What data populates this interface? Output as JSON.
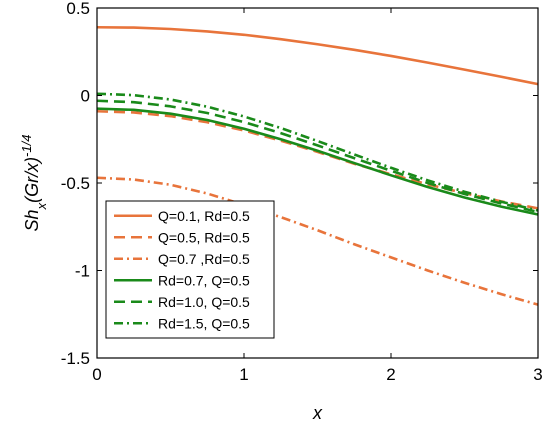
{
  "chart_data": {
    "type": "line",
    "xlabel": "x",
    "ylabel": {
      "base": "Sh",
      "sub": "x",
      "middle": "(Gr/x)",
      "sup": "-1/4"
    },
    "xlim": [
      0,
      3
    ],
    "ylim": [
      -1.5,
      0.5
    ],
    "x_ticks": [
      0,
      1,
      2,
      3
    ],
    "x_tick_labels": [
      "0",
      "1",
      "2",
      "3"
    ],
    "y_ticks": [
      0.5,
      0,
      -0.5,
      -1,
      -1.5
    ],
    "y_tick_labels": [
      "0.5",
      "0",
      "-0.5",
      "-1",
      "-1.5"
    ],
    "grid": false,
    "legend_position": "bottom-left",
    "x": [
      0,
      0.25,
      0.5,
      0.75,
      1,
      1.25,
      1.5,
      1.75,
      2,
      2.25,
      2.5,
      2.75,
      3
    ],
    "series": [
      {
        "name": "Q=0.1, Rd=0.5",
        "color": "#E8743B",
        "dash": "solid",
        "values": [
          0.39,
          0.388,
          0.38,
          0.366,
          0.347,
          0.322,
          0.293,
          0.261,
          0.226,
          0.188,
          0.148,
          0.107,
          0.065
        ]
      },
      {
        "name": "Q=0.5, Rd=0.5",
        "color": "#E8743B",
        "dash": "dashed",
        "values": [
          -0.09,
          -0.097,
          -0.118,
          -0.153,
          -0.2,
          -0.258,
          -0.322,
          -0.39,
          -0.45,
          -0.508,
          -0.558,
          -0.605,
          -0.645
        ]
      },
      {
        "name": "Q=0.7 ,Rd=0.5",
        "color": "#E8743B",
        "dash": "dashdot",
        "values": [
          -0.47,
          -0.48,
          -0.51,
          -0.56,
          -0.625,
          -0.695,
          -0.77,
          -0.85,
          -0.925,
          -1.0,
          -1.07,
          -1.135,
          -1.195
        ]
      },
      {
        "name": "Rd=0.7, Q=0.5",
        "color": "#1A8A1A",
        "dash": "solid",
        "values": [
          -0.075,
          -0.082,
          -0.104,
          -0.14,
          -0.19,
          -0.25,
          -0.316,
          -0.386,
          -0.456,
          -0.523,
          -0.583,
          -0.635,
          -0.68
        ]
      },
      {
        "name": "Rd=1.0, Q=0.5",
        "color": "#1A8A1A",
        "dash": "dashed",
        "values": [
          -0.03,
          -0.038,
          -0.062,
          -0.1,
          -0.152,
          -0.215,
          -0.285,
          -0.358,
          -0.43,
          -0.5,
          -0.563,
          -0.617,
          -0.665
        ]
      },
      {
        "name": "Rd=1.5, Q=0.5",
        "color": "#1A8A1A",
        "dash": "dashdot",
        "values": [
          0.01,
          0.002,
          -0.023,
          -0.064,
          -0.12,
          -0.186,
          -0.26,
          -0.337,
          -0.413,
          -0.485,
          -0.55,
          -0.607,
          -0.657
        ]
      }
    ]
  }
}
